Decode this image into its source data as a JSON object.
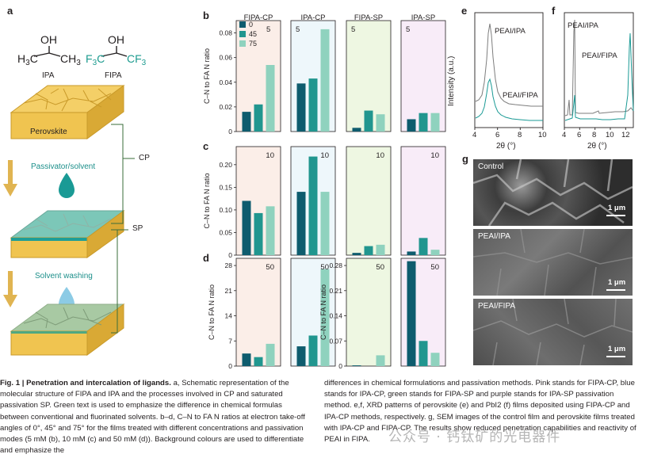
{
  "panel_letters": {
    "a": "a",
    "b": "b",
    "c": "c",
    "d": "d",
    "e": "e",
    "f": "f",
    "g": "g"
  },
  "panel_a": {
    "ipa_label": "IPA",
    "fipa_label": "FIPA",
    "perovskite_label": "Perovskite",
    "step1_label": "Passivator/solvent",
    "step2_label": "Solvent washing",
    "cp_label": "CP",
    "sp_label": "SP"
  },
  "columns": [
    "FIPA-CP",
    "IPA-CP",
    "FIPA-SP",
    "IPA-SP"
  ],
  "legend": {
    "items": [
      "0",
      "45",
      "75"
    ],
    "colors": [
      "#0e5c6e",
      "#21968f",
      "#8fd2be"
    ]
  },
  "group_colors": {
    "FIPA-CP": "#fbeee8",
    "IPA-CP": "#eef7fb",
    "FIPA-SP": "#eef7e2",
    "IPA-SP": "#f8ecf8"
  },
  "chart_data": [
    {
      "type": "bar",
      "panel": "b",
      "ylabel": "C–N to FA N ratio",
      "concentration_tag": "5",
      "yticks": [
        "0",
        "0.02",
        "0.04",
        "0.06",
        "0.08"
      ],
      "ylim": [
        0,
        0.09
      ],
      "groups": [
        "FIPA-CP",
        "IPA-CP",
        "FIPA-SP",
        "IPA-SP"
      ],
      "series": [
        {
          "name": "0",
          "values": [
            0.016,
            0.039,
            0.003,
            0.01
          ]
        },
        {
          "name": "45",
          "values": [
            0.022,
            0.043,
            0.017,
            0.015
          ]
        },
        {
          "name": "75",
          "values": [
            0.054,
            0.083,
            0.014,
            0.015
          ]
        }
      ]
    },
    {
      "type": "bar",
      "panel": "c",
      "ylabel": "C–N to FA N ratio",
      "concentration_tag": "10",
      "yticks": [
        "0",
        "0.05",
        "0.10",
        "0.15",
        "0.20"
      ],
      "ylim": [
        0,
        0.24
      ],
      "groups": [
        "FIPA-CP",
        "IPA-CP",
        "FIPA-SP",
        "IPA-SP"
      ],
      "series": [
        {
          "name": "0",
          "values": [
            0.12,
            0.14,
            0.005,
            0.008
          ]
        },
        {
          "name": "45",
          "values": [
            0.093,
            0.218,
            0.02,
            0.038
          ]
        },
        {
          "name": "75",
          "values": [
            0.108,
            0.14,
            0.023,
            0.012
          ]
        }
      ]
    },
    {
      "type": "bar",
      "panel": "d",
      "ylabel": "C–N to FA N ratio",
      "concentration_tag": "50",
      "left_yticks": [
        "0",
        "7",
        "14",
        "21",
        "28"
      ],
      "left_ylim": [
        0,
        30
      ],
      "right_yticks": [
        "0",
        "0.07",
        "0.14",
        "0.21",
        "0.28"
      ],
      "right_ylim": [
        0,
        0.3
      ],
      "groups": [
        "FIPA-CP",
        "IPA-CP",
        "FIPA-SP",
        "IPA-SP"
      ],
      "series": [
        {
          "name": "0",
          "values": [
            3.5,
            5.5,
            0.002,
            0.292
          ]
        },
        {
          "name": "45",
          "values": [
            2.5,
            8.5,
            0.0,
            0.07
          ]
        },
        {
          "name": "75",
          "values": [
            6.2,
            27.0,
            0.03,
            0.037
          ]
        }
      ]
    }
  ],
  "panel_e": {
    "xlabel": "2θ (°)",
    "ylabel": "Intensity (a.u.)",
    "xticks": [
      "4",
      "6",
      "8",
      "10"
    ],
    "label_top": "PEAI/IPA",
    "label_bottom": "PEAI/FIPA"
  },
  "panel_f": {
    "xlabel": "2θ (°)",
    "xticks": [
      "4",
      "6",
      "8",
      "10",
      "12"
    ],
    "label_top": "PEAI/IPA",
    "label_bottom": "PEAI/FIPA"
  },
  "panel_g": {
    "images": [
      "Control",
      "PEAI/IPA",
      "PEAI/FIPA"
    ],
    "scale_bar": "1 μm"
  },
  "caption": {
    "fig_label": "Fig. 1 |",
    "title": "Penetration and intercalation of ligands.",
    "left_text": " a, Schematic representation of the molecular structure of FIPA and IPA and the processes involved in CP and saturated passivation SP. Green text is used to emphasize the difference in chemical formulas between conventional and fluorinated solvents. b–d, C–N to FA N ratios at electron take-off angles of 0°, 45° and 75° for the films treated with different concentrations and passivation modes (5 mM (b), 10 mM (c) and 50 mM (d)). Background colours are used to differentiate and emphasize the",
    "right_text": "differences in chemical formulations and passivation methods. Pink stands for FIPA-CP, blue stands for IPA-CP, green stands for FIPA-SP and purple stands for IPA-SP passivation method. e,f, XRD patterns of perovskite (e) and PbI2 (f) films deposited using FIPA-CP and IPA-CP methods, respectively. g, SEM images of the control film and perovskite films treated with IPA-CP and FIPA-CP. The results show reduced penetration capabilities and reactivity of PEAI in FIPA."
  },
  "watermark": "公众号 · 钙钛矿的光电器件"
}
